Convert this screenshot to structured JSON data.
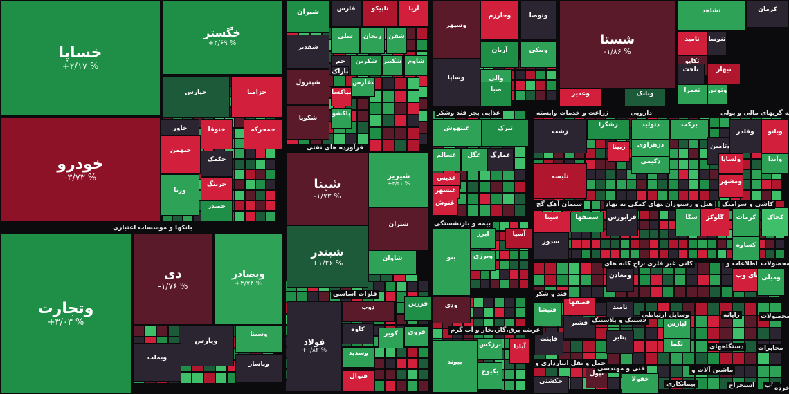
{
  "colors": {
    "up_strong": "#1f8f47",
    "up": "#2ea357",
    "up_light": "#3fbf6a",
    "down_strong": "#8e1227",
    "down": "#b0162e",
    "down_light": "#d21f3c",
    "dark_red": "#5a1a2a",
    "dark": "#2a2530",
    "neutral": "#3a3540",
    "green_dark": "#1d5a3a"
  },
  "chart_data": {
    "type": "treemap",
    "sectors": [
      "بانکها و موسسات اعتباری",
      "فرآورده های نفتی",
      "فلزات اساسی",
      "غذایی بجز قند وشکر",
      "زراعت و خدمات وابسته",
      "دارویی",
      "واسطه گریهای مالی و پولی",
      "سیمان آهک گچ",
      "فعالیتهای کمکی به نهاد",
      "هتل و رستوران",
      "کاشی و سرامیک",
      "بیمه و بازنشستگی",
      "استخراج کانه های",
      "کانی غیر فلزی",
      "اطلاعات و",
      "محصولات",
      "قند و شکر",
      "عرضه برق،گاز،بخار و آب گرم",
      "لاستیک و پلاستیک",
      "وسایل ارتباطی",
      "رایانه",
      "محصولات",
      "حمل و نقل انبارداری و",
      "فنی و مهندسی",
      "ماشین آلات و",
      "دستگاههای",
      "مخابرات",
      "بیمانکاری",
      "استخراج",
      "چاپ",
      "خرده"
    ],
    "tiles": [
      {
        "name": "خساپا",
        "pct": "+۲/۱۷ %",
        "v": 2.17
      },
      {
        "name": "خودرو",
        "pct": "-۳/۷۳ %",
        "v": -3.73
      },
      {
        "name": "خگستر",
        "pct": "+۲/۶۹ %",
        "v": 2.69
      },
      {
        "name": "وتجارت",
        "pct": "+۳/۰۳ %",
        "v": 3.03
      },
      {
        "name": "دی",
        "pct": "-۱/۷۶ %",
        "v": -1.76
      },
      {
        "name": "وبصادر",
        "pct": "+۴/۷۴ %",
        "v": 4.74
      },
      {
        "name": "شستا",
        "pct": "-۱/۸۶ %",
        "v": -1.86
      },
      {
        "name": "شپنا",
        "pct": "-۱/۷۳ %",
        "v": -1.73
      },
      {
        "name": "شبندر",
        "pct": "+۱/۲۶ %",
        "v": 1.26
      },
      {
        "name": "شیریز",
        "pct": "+۴/۲۱ %",
        "v": 4.21
      },
      {
        "name": "فولاد",
        "pct": "+۰/۸۲ %",
        "v": 0.82
      },
      {
        "name": "خپارس",
        "pct": "",
        "v": 1
      },
      {
        "name": "خزامیا",
        "pct": "",
        "v": -1
      },
      {
        "name": "خاور",
        "pct": "",
        "v": 1
      },
      {
        "name": "خبهمن",
        "pct": "",
        "v": -1
      },
      {
        "name": "ختوقا",
        "pct": "",
        "v": -1
      },
      {
        "name": "خمحرکه",
        "pct": "",
        "v": -1
      },
      {
        "name": "خکمک",
        "pct": "",
        "v": -1
      },
      {
        "name": "خرینگ",
        "pct": "",
        "v": -1
      },
      {
        "name": "ورنا",
        "pct": "",
        "v": 1
      },
      {
        "name": "خصدر",
        "pct": "",
        "v": 1
      },
      {
        "name": "وپارس",
        "pct": "",
        "v": -0.67
      },
      {
        "name": "وبملت",
        "pct": "",
        "v": -0.18
      },
      {
        "name": "وسینا",
        "pct": "",
        "v": 1
      },
      {
        "name": "وپاسار",
        "pct": "",
        "v": 0
      },
      {
        "name": "شیران",
        "pct": "",
        "v": 1
      },
      {
        "name": "شفدیر",
        "pct": "",
        "v": -1
      },
      {
        "name": "شپترول",
        "pct": "",
        "v": -1
      },
      {
        "name": "شکویا",
        "pct": "",
        "v": -1
      },
      {
        "name": "فارس",
        "pct": "",
        "v": 1
      },
      {
        "name": "تاپیکو",
        "pct": "",
        "v": -1
      },
      {
        "name": "آریا",
        "pct": "",
        "v": -1
      },
      {
        "name": "شلی",
        "pct": "",
        "v": 1
      },
      {
        "name": "زنجان",
        "pct": "",
        "v": 1
      },
      {
        "name": "شفن",
        "pct": "",
        "v": 1
      },
      {
        "name": "شکربن",
        "pct": "",
        "v": 1
      },
      {
        "name": "شکبیر",
        "pct": "",
        "v": 1
      },
      {
        "name": "شاوم",
        "pct": "",
        "v": 1
      },
      {
        "name": "جم",
        "pct": "",
        "v": 1
      },
      {
        "name": "شپاکسا",
        "pct": "",
        "v": -1
      },
      {
        "name": "شفارس",
        "pct": "",
        "v": 1
      },
      {
        "name": "پاکشو",
        "pct": "",
        "v": -1
      },
      {
        "name": "شاراک",
        "pct": "",
        "v": 1
      },
      {
        "name": "شتران",
        "pct": "",
        "v": -1
      },
      {
        "name": "شاوان",
        "pct": "",
        "v": 1
      },
      {
        "name": "ذوب",
        "pct": "",
        "v": -1
      },
      {
        "name": "فزرین",
        "pct": "",
        "v": 1
      },
      {
        "name": "کاوه",
        "pct": "",
        "v": -1
      },
      {
        "name": "کویر",
        "pct": "",
        "v": 1
      },
      {
        "name": "فروی",
        "pct": "",
        "v": 1
      },
      {
        "name": "وسدید",
        "pct": "",
        "v": 1
      },
      {
        "name": "فنوال",
        "pct": "",
        "v": -1
      },
      {
        "name": "وسپهر",
        "pct": "",
        "v": -1
      },
      {
        "name": "وخارزم",
        "pct": "",
        "v": -1
      },
      {
        "name": "وتوصا",
        "pct": "",
        "v": 1
      },
      {
        "name": "آریان",
        "pct": "",
        "v": 1
      },
      {
        "name": "والی",
        "pct": "",
        "v": 1
      },
      {
        "name": "وساپا",
        "pct": "",
        "v": 1
      },
      {
        "name": "صبا",
        "pct": "",
        "v": 1
      },
      {
        "name": "ونیکی",
        "pct": "",
        "v": 1
      },
      {
        "name": "وغدیر",
        "pct": "",
        "v": -1
      },
      {
        "name": "وبانک",
        "pct": "",
        "v": 1
      },
      {
        "name": "تشاهد",
        "pct": "",
        "v": 1
      },
      {
        "name": "کرمان",
        "pct": "",
        "v": -1
      },
      {
        "name": "تامید",
        "pct": "",
        "v": -1
      },
      {
        "name": "ثنوسا",
        "pct": "",
        "v": -1
      },
      {
        "name": "تکاپو",
        "pct": "",
        "v": -1
      },
      {
        "name": "تاخت",
        "pct": "",
        "v": -1
      },
      {
        "name": "تعمرا",
        "pct": "",
        "v": 1
      },
      {
        "name": "تیهاز",
        "pct": "",
        "v": -1
      },
      {
        "name": "وتوس",
        "pct": "",
        "v": 1
      },
      {
        "name": "عینهوش",
        "pct": "",
        "v": 1
      },
      {
        "name": "تبرک",
        "pct": "",
        "v": 1
      },
      {
        "name": "غسالم",
        "pct": "",
        "v": 1
      },
      {
        "name": "غگل",
        "pct": "",
        "v": 1
      },
      {
        "name": "غمارگ",
        "pct": "",
        "v": -1
      },
      {
        "name": "غدیس",
        "pct": "",
        "v": -1
      },
      {
        "name": "غبشهر",
        "pct": "",
        "v": -1
      },
      {
        "name": "غنوش",
        "pct": "",
        "v": -1
      },
      {
        "name": "زشت",
        "pct": "",
        "v": -0.46
      },
      {
        "name": "زشگزا",
        "pct": "",
        "v": 1
      },
      {
        "name": "زبینا",
        "pct": "",
        "v": -1
      },
      {
        "name": "دتولید",
        "pct": "",
        "v": 1
      },
      {
        "name": "دزهراوی",
        "pct": "",
        "v": 1
      },
      {
        "name": "دکیمی",
        "pct": "",
        "v": 1
      },
      {
        "name": "برکت",
        "pct": "",
        "v": 1
      },
      {
        "name": "وثامین",
        "pct": "",
        "v": -1
      },
      {
        "name": "تلیسه",
        "pct": "",
        "v": 0
      },
      {
        "name": "وفلدر",
        "pct": "",
        "v": -0.83
      },
      {
        "name": "وبانو",
        "pct": "",
        "v": -1
      },
      {
        "name": "ولساپا",
        "pct": "",
        "v": -1
      },
      {
        "name": "ومشهر",
        "pct": "",
        "v": -1
      },
      {
        "name": "وآیدا",
        "pct": "",
        "v": 1
      },
      {
        "name": "سیتا",
        "pct": "",
        "v": -1
      },
      {
        "name": "سصفها",
        "pct": "",
        "v": 1
      },
      {
        "name": "سدور",
        "pct": "",
        "v": -1
      },
      {
        "name": "فرابورس",
        "pct": "",
        "v": 0
      },
      {
        "name": "سگا",
        "pct": "",
        "v": 1
      },
      {
        "name": "گلوکز",
        "pct": "",
        "v": -1
      },
      {
        "name": "کرمات",
        "pct": "",
        "v": 1
      },
      {
        "name": "کخاک",
        "pct": "",
        "v": -1
      },
      {
        "name": "کساوه",
        "pct": "",
        "v": 1
      },
      {
        "name": "ابرز",
        "pct": "",
        "v": 1
      },
      {
        "name": "آسیا",
        "pct": "",
        "v": -1
      },
      {
        "name": "بنو",
        "pct": "",
        "v": 1
      },
      {
        "name": "وبرزی",
        "pct": "",
        "v": 1
      },
      {
        "name": "ودی",
        "pct": "",
        "v": -1
      },
      {
        "name": "ومعادن",
        "pct": "",
        "v": 0
      },
      {
        "name": "های وب",
        "pct": "",
        "v": -1
      },
      {
        "name": "ومیلی",
        "pct": "",
        "v": 1
      },
      {
        "name": "قصفها",
        "pct": "",
        "v": -1
      },
      {
        "name": "قشیر",
        "pct": "",
        "v": -1
      },
      {
        "name": "قنیشا",
        "pct": "",
        "v": 1
      },
      {
        "name": "ثامید",
        "pct": "",
        "v": 0
      },
      {
        "name": "قاینت",
        "pct": "",
        "v": -1
      },
      {
        "name": "بیوند",
        "pct": "",
        "v": 1
      },
      {
        "name": "برزکس",
        "pct": "",
        "v": 1
      },
      {
        "name": "بکیوج",
        "pct": "",
        "v": 1
      },
      {
        "name": "آبادا",
        "pct": "",
        "v": -1
      },
      {
        "name": "پتایر",
        "pct": "",
        "v": -1
      },
      {
        "name": "لپارس",
        "pct": "",
        "v": 1
      },
      {
        "name": "تکما",
        "pct": "",
        "v": 1
      },
      {
        "name": "حکشتی",
        "pct": "",
        "v": -1
      },
      {
        "name": "تپول",
        "pct": "",
        "v": -1
      },
      {
        "name": "خفولا",
        "pct": "",
        "v": 1
      }
    ]
  }
}
